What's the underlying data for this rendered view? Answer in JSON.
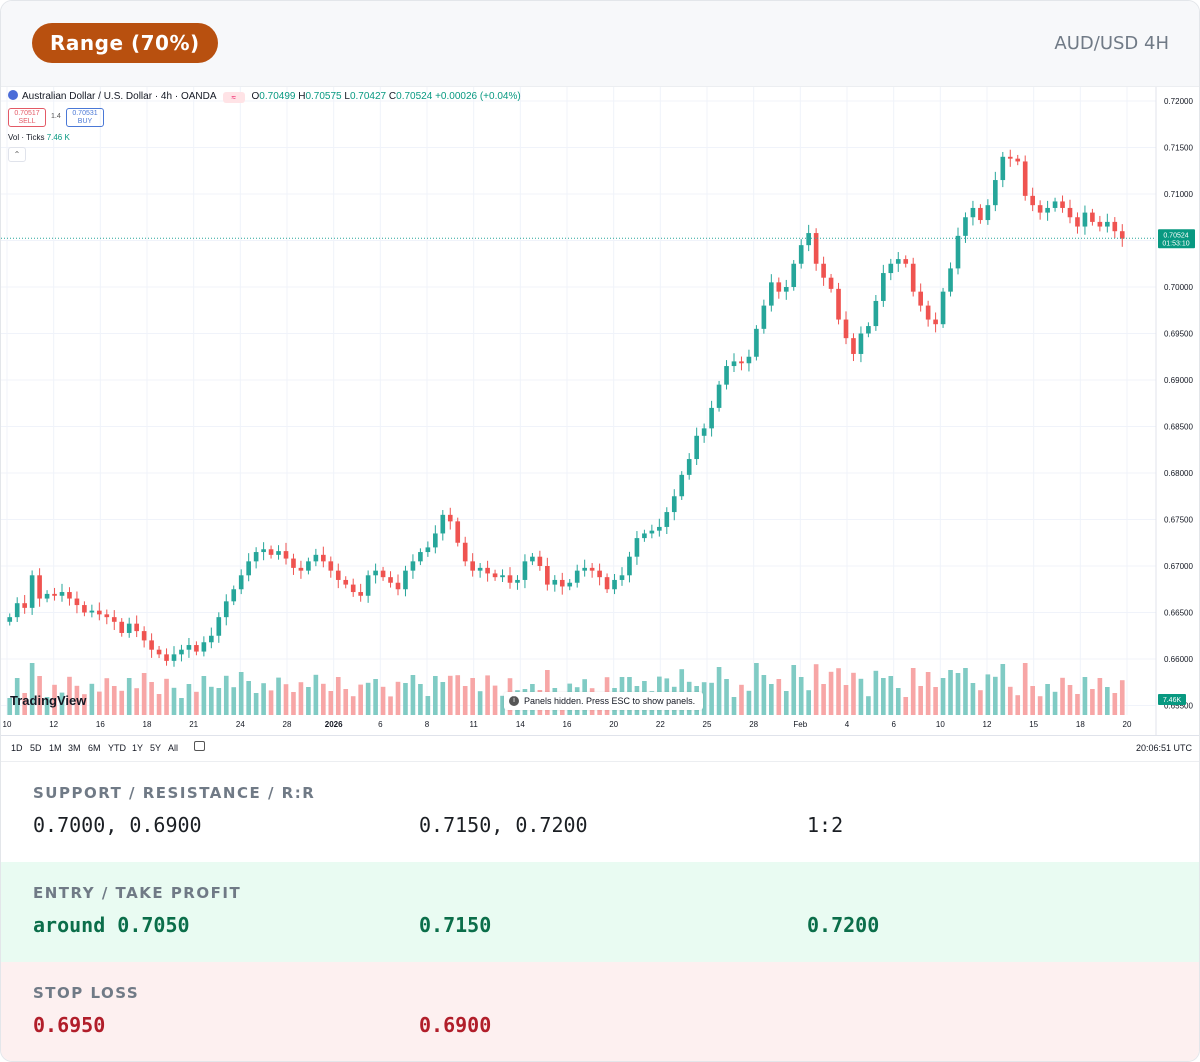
{
  "header": {
    "badge": "Range (70%)",
    "pair": "AUD/USD 4H"
  },
  "chart": {
    "legend": {
      "symbol": "Australian Dollar / U.S. Dollar · 4h · OANDA",
      "open_label": "O",
      "open": "0.70499",
      "high_label": "H",
      "high": "0.70575",
      "low_label": "L",
      "low": "0.70427",
      "close_label": "C",
      "close": "0.70524",
      "change": "+0.00026 (+0.04%)"
    },
    "trade": {
      "sell_price": "0.70517",
      "sell_label": "SELL",
      "spread": "1.4",
      "buy_price": "0.70531",
      "buy_label": "BUY"
    },
    "volume": {
      "label": "Vol · Ticks",
      "value": "7.46 K",
      "badge": "7.46K"
    },
    "price_labels": [
      "0.72000",
      "0.71500",
      "0.71000",
      "0.70500",
      "0.70000",
      "0.69500",
      "0.69000",
      "0.68500",
      "0.68000",
      "0.67500",
      "0.67000",
      "0.66500",
      "0.66000",
      "0.65500"
    ],
    "current_price": {
      "price": "0.70524",
      "countdown": "01:53:10"
    },
    "time_labels": [
      "10",
      "12",
      "16",
      "18",
      "21",
      "24",
      "28",
      "2026",
      "6",
      "8",
      "11",
      "14",
      "16",
      "20",
      "22",
      "25",
      "28",
      "Feb",
      "4",
      "6",
      "10",
      "12",
      "15",
      "18",
      "20"
    ],
    "watermark": "TradingView",
    "notice": "Panels hidden. Press ESC to show panels.",
    "timeframes": [
      "1D",
      "5D",
      "1M",
      "3M",
      "6M",
      "YTD",
      "1Y",
      "5Y",
      "All"
    ],
    "clock": "20:06:51 UTC",
    "colors": {
      "up": "#26a69a",
      "down": "#ef5350",
      "vol_up": "#80cbc4",
      "vol_down": "#f7a6a6"
    },
    "series": [
      0.6645,
      0.666,
      0.6655,
      0.669,
      0.6665,
      0.667,
      0.6668,
      0.6672,
      0.6665,
      0.6658,
      0.665,
      0.6652,
      0.6648,
      0.6645,
      0.664,
      0.6628,
      0.6638,
      0.663,
      0.662,
      0.661,
      0.6605,
      0.6598,
      0.6605,
      0.661,
      0.6615,
      0.6608,
      0.6618,
      0.6625,
      0.6645,
      0.6662,
      0.6675,
      0.669,
      0.6705,
      0.6715,
      0.6718,
      0.6712,
      0.6716,
      0.6708,
      0.6698,
      0.6695,
      0.6705,
      0.6712,
      0.6705,
      0.6695,
      0.6685,
      0.668,
      0.6672,
      0.6668,
      0.669,
      0.6695,
      0.6688,
      0.6682,
      0.6675,
      0.6695,
      0.6705,
      0.6715,
      0.672,
      0.6735,
      0.6755,
      0.6748,
      0.6725,
      0.6705,
      0.6695,
      0.6698,
      0.6692,
      0.6688,
      0.669,
      0.6682,
      0.6685,
      0.6705,
      0.671,
      0.67,
      0.668,
      0.6685,
      0.6678,
      0.6682,
      0.6695,
      0.6698,
      0.6695,
      0.6688,
      0.6675,
      0.6685,
      0.669,
      0.671,
      0.673,
      0.6735,
      0.6738,
      0.6742,
      0.6758,
      0.6775,
      0.6798,
      0.6815,
      0.684,
      0.6848,
      0.687,
      0.6895,
      0.6915,
      0.692,
      0.6918,
      0.6925,
      0.6955,
      0.698,
      0.7005,
      0.6995,
      0.7,
      0.7025,
      0.7045,
      0.7058,
      0.7025,
      0.701,
      0.6998,
      0.6965,
      0.6945,
      0.6928,
      0.695,
      0.6958,
      0.6985,
      0.7015,
      0.7025,
      0.703,
      0.7025,
      0.6995,
      0.698,
      0.6965,
      0.696,
      0.6995,
      0.702,
      0.7055,
      0.7075,
      0.7085,
      0.7072,
      0.7088,
      0.7115,
      0.714,
      0.7138,
      0.7135,
      0.7098,
      0.7088,
      0.708,
      0.7085,
      0.7092,
      0.7085,
      0.7075,
      0.7065,
      0.708,
      0.707,
      0.7065,
      0.707,
      0.706,
      0.7052
    ]
  },
  "support_resistance": {
    "title": "SUPPORT / RESISTANCE / R:R",
    "support": "0.7000, 0.6900",
    "resistance": "0.7150, 0.7200",
    "rr": "1:2"
  },
  "entry_tp": {
    "title": "ENTRY / TAKE PROFIT",
    "entry": "around 0.7050",
    "tp1": "0.7150",
    "tp2": "0.7200"
  },
  "stop_loss": {
    "title": "STOP LOSS",
    "sl1": "0.6950",
    "sl2": "0.6900"
  }
}
